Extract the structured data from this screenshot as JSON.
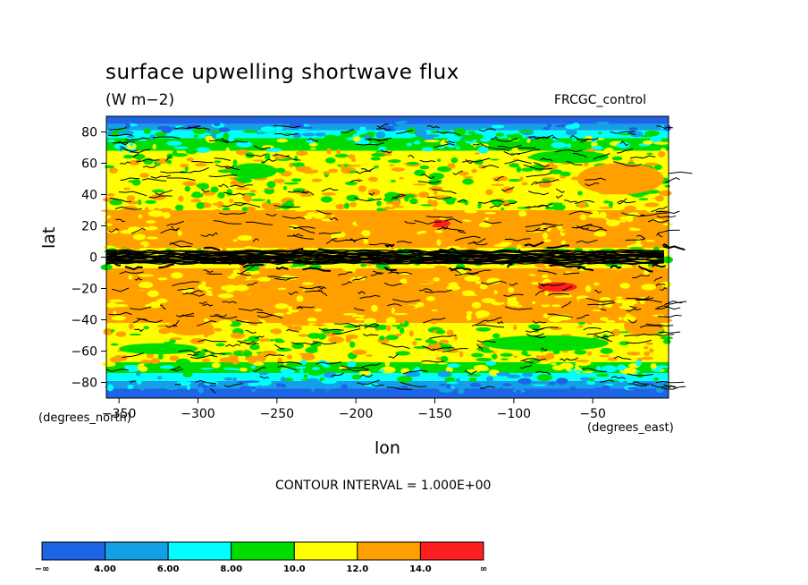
{
  "title": "surface upwelling shortwave flux",
  "units": "(W m−2)",
  "dataset": "FRCGC_control",
  "contour_interval": "CONTOUR INTERVAL = 1.000E+00",
  "chart_data": {
    "type": "heatmap",
    "title": "surface upwelling shortwave flux",
    "xlabel": "lon",
    "ylabel": "lat",
    "x_unit": "(degrees_east)",
    "y_unit": "(degrees_north)",
    "xlim": [
      -358,
      -2
    ],
    "ylim": [
      -90,
      90
    ],
    "x_ticks": [
      -350,
      -300,
      -250,
      -200,
      -150,
      -100,
      -50
    ],
    "y_ticks": [
      -80,
      -60,
      -40,
      -20,
      0,
      20,
      40,
      60,
      80
    ],
    "x_tick_labels": [
      "−350",
      "−300",
      "−250",
      "−200",
      "−150",
      "−100",
      "−50"
    ],
    "y_tick_labels": [
      "−80",
      "−60",
      "−40",
      "−20",
      "0",
      "20",
      "40",
      "60",
      "80"
    ],
    "colorbar": {
      "labels": [
        "−∞",
        "4.00",
        "6.00",
        "8.00",
        "10.0",
        "12.0",
        "14.0",
        "∞"
      ],
      "bins": [
        {
          "range": "< 4",
          "color": "#1e64e6"
        },
        {
          "range": "4–6",
          "color": "#14a0e6"
        },
        {
          "range": "6–8",
          "color": "#00ffff"
        },
        {
          "range": "8–10",
          "color": "#00dc00"
        },
        {
          "range": "10–12",
          "color": "#ffff00"
        },
        {
          "range": "12–14",
          "color": "#ffa000"
        },
        {
          "range": "> 14",
          "color": "#ff1e1e"
        }
      ]
    },
    "bands": [
      {
        "lat": [
          -90,
          -84
        ],
        "bin": 0
      },
      {
        "lat": [
          -84,
          -79
        ],
        "bin": 1
      },
      {
        "lat": [
          -79,
          -74
        ],
        "bin": 2
      },
      {
        "lat": [
          -74,
          -67
        ],
        "bin": 3
      },
      {
        "lat": [
          -67,
          -52
        ],
        "bin": 4
      },
      {
        "lat": [
          -52,
          -42
        ],
        "bin": 4
      },
      {
        "lat": [
          -42,
          -7
        ],
        "bin": 5
      },
      {
        "lat": [
          -7,
          6
        ],
        "bin": 4
      },
      {
        "lat": [
          6,
          30
        ],
        "bin": 5
      },
      {
        "lat": [
          30,
          55
        ],
        "bin": 4
      },
      {
        "lat": [
          55,
          68
        ],
        "bin": 4
      },
      {
        "lat": [
          68,
          76
        ],
        "bin": 3
      },
      {
        "lat": [
          76,
          81
        ],
        "bin": 2
      },
      {
        "lat": [
          81,
          85
        ],
        "bin": 1
      },
      {
        "lat": [
          85,
          90
        ],
        "bin": 0
      }
    ],
    "patches": [
      {
        "lon": [
          -155,
          -140
        ],
        "lat": [
          19,
          24
        ],
        "bin": 6
      },
      {
        "lon": [
          -85,
          -60
        ],
        "lat": [
          -22,
          -16
        ],
        "bin": 6
      },
      {
        "lon": [
          -200,
          -150
        ],
        "lat": [
          15,
          30
        ],
        "bin": 5
      },
      {
        "lon": [
          -320,
          -250
        ],
        "lat": [
          15,
          30
        ],
        "bin": 5
      },
      {
        "lon": [
          -230,
          -170
        ],
        "lat": [
          -30,
          -15
        ],
        "bin": 5
      },
      {
        "lon": [
          -280,
          -250
        ],
        "lat": [
          50,
          60
        ],
        "bin": 3
      },
      {
        "lon": [
          -90,
          -40
        ],
        "lat": [
          60,
          68
        ],
        "bin": 3
      },
      {
        "lon": [
          -120,
          -40
        ],
        "lat": [
          -60,
          -50
        ],
        "bin": 3
      },
      {
        "lon": [
          -350,
          -300
        ],
        "lat": [
          -62,
          -55
        ],
        "bin": 3
      },
      {
        "lon": [
          -60,
          -5
        ],
        "lat": [
          40,
          60
        ],
        "bin": 5
      },
      {
        "lon": [
          -30,
          -5
        ],
        "lat": [
          -50,
          -40
        ],
        "bin": 5
      },
      {
        "lon": [
          -320,
          -290
        ],
        "lat": [
          -50,
          -40
        ],
        "bin": 5
      }
    ]
  }
}
